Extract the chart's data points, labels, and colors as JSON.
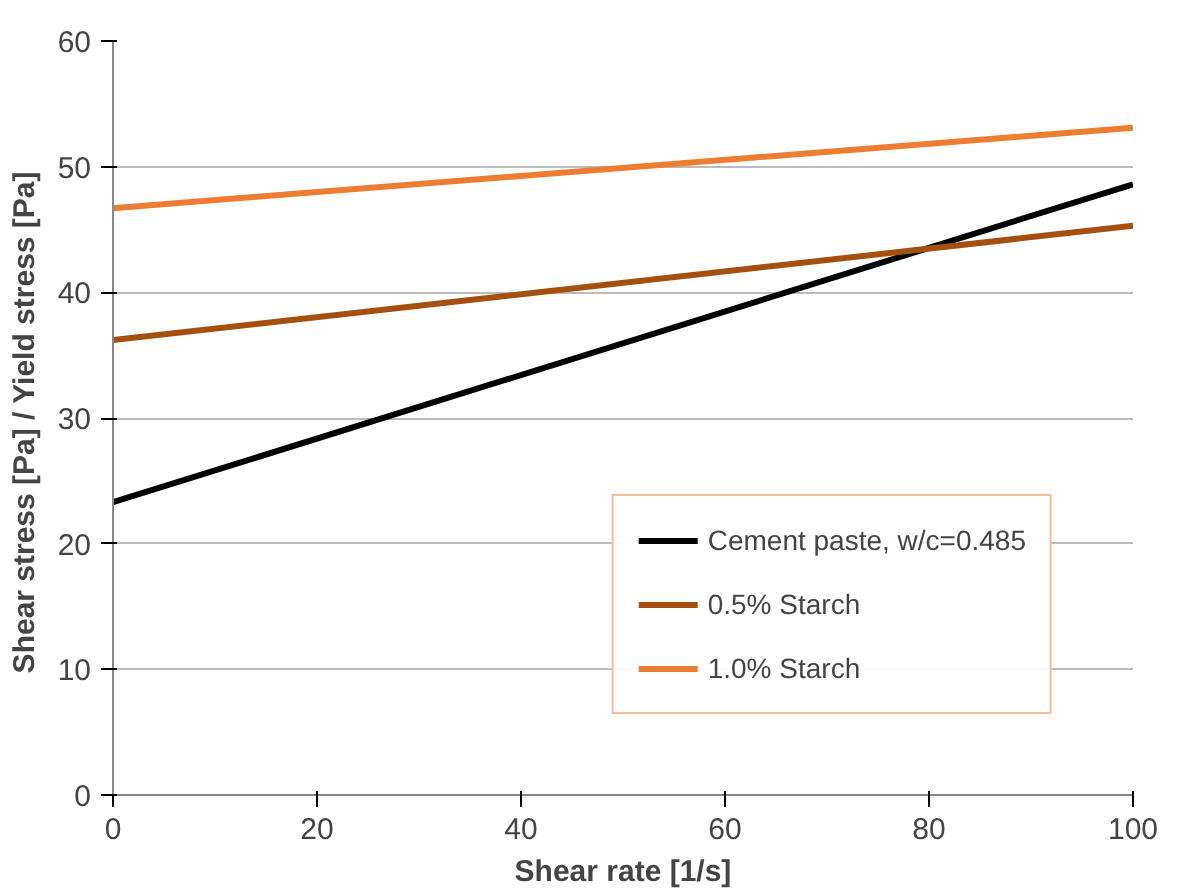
{
  "chart_data": {
    "type": "line",
    "xlabel": "Shear rate [1/s]",
    "ylabel": "Shear stress [Pa]  / Yield stress [Pa]",
    "x": [
      0,
      100
    ],
    "series": [
      {
        "name": "Cement paste, w/c=0.485",
        "color": "#000000",
        "values": [
          23.3,
          48.6
        ]
      },
      {
        "name": "0.5% Starch",
        "color": "#a5500f",
        "values": [
          36.2,
          45.3
        ]
      },
      {
        "name": "1.0% Starch",
        "color": "#ed7d31",
        "values": [
          46.7,
          53.1
        ]
      }
    ],
    "xlim": [
      0,
      100
    ],
    "xticks": [
      0,
      20,
      40,
      60,
      80,
      100
    ],
    "ylim": [
      0,
      60
    ],
    "yticks": [
      0,
      10,
      20,
      30,
      40,
      50,
      60
    ],
    "grid": "y",
    "legend": "bottom right",
    "marker": "none",
    "line_style": "solid"
  }
}
